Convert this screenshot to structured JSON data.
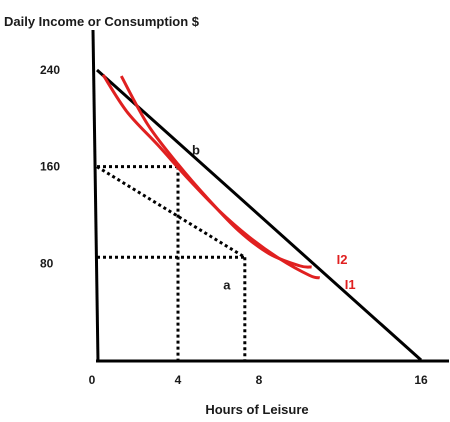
{
  "chart_data": {
    "type": "line",
    "title": "Daily Income or Consumption $",
    "xlabel": "Hours of Leisure",
    "ylabel": "Daily Income or Consumption $",
    "xlim": [
      0,
      16
    ],
    "ylim": [
      0,
      240
    ],
    "x_ticks": [
      "0",
      "4",
      "8",
      "16"
    ],
    "y_ticks": [
      "240",
      "160",
      "80"
    ],
    "budget_line": {
      "points": [
        [
          0,
          240
        ],
        [
          16,
          0
        ]
      ]
    },
    "indifference_curves": [
      {
        "name": "I2",
        "points": [
          [
            1.2,
            235
          ],
          [
            2.5,
            195
          ],
          [
            4,
            162
          ],
          [
            5.5,
            133
          ],
          [
            7,
            107
          ],
          [
            8.5,
            88
          ],
          [
            10,
            78
          ],
          [
            10.6,
            77
          ]
        ]
      },
      {
        "name": "I1",
        "points": [
          [
            0.3,
            236
          ],
          [
            1.5,
            205
          ],
          [
            3,
            178
          ],
          [
            4.5,
            150
          ],
          [
            6,
            124
          ],
          [
            7.5,
            102
          ],
          [
            9,
            84
          ],
          [
            10.5,
            70
          ],
          [
            11,
            68
          ]
        ]
      }
    ],
    "marked_points": [
      {
        "label": "b",
        "x": 4,
        "y": 160
      },
      {
        "label": "a",
        "x": 7.3,
        "y": 85
      }
    ],
    "guide_lines": [
      [
        [
          0,
          160
        ],
        [
          4,
          160
        ]
      ],
      [
        [
          4,
          160
        ],
        [
          4,
          0
        ]
      ],
      [
        [
          0,
          85
        ],
        [
          7.3,
          85
        ]
      ],
      [
        [
          7.3,
          85
        ],
        [
          7.3,
          0
        ]
      ],
      [
        [
          0,
          160
        ],
        [
          7.3,
          85
        ]
      ]
    ],
    "colors": {
      "axis": "#000000",
      "curve": "#e02020",
      "text": "#1a1a1a"
    },
    "grid": false
  }
}
